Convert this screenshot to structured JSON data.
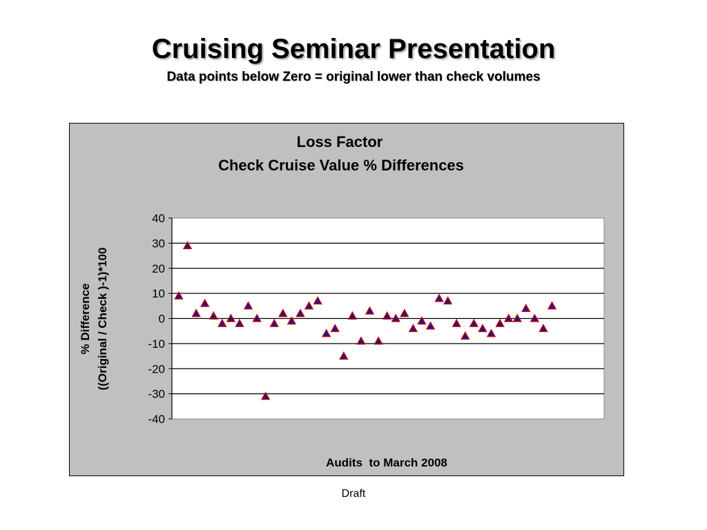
{
  "slide": {
    "title": "Cruising Seminar Presentation",
    "subtitle": "Data points below Zero = original lower than check volumes",
    "footer": "Draft"
  },
  "chart_data": {
    "type": "scatter",
    "title_line1": "Loss Factor",
    "title_line2": "Check Cruise Value % Differences",
    "xlabel": "Audits  to March 2008",
    "ylabel_line1": "% Difference",
    "ylabel_line2": "((Original / Check )-1)*100",
    "ylim": [
      -40,
      40
    ],
    "yticks": [
      40,
      30,
      20,
      10,
      0,
      -10,
      -20,
      -30,
      -40
    ],
    "grid": true,
    "legend": "none",
    "marker": "triangle",
    "marker_fill": "#1a1a8c",
    "marker_edge": "#cc0000",
    "x": [
      1,
      2,
      3,
      4,
      5,
      6,
      7,
      8,
      9,
      10,
      11,
      12,
      13,
      14,
      15,
      16,
      17,
      18,
      19,
      20,
      21,
      22,
      23,
      24,
      25,
      26,
      27,
      28,
      29,
      30,
      31,
      32,
      33,
      34,
      35,
      36,
      37,
      38,
      39,
      40,
      41,
      42,
      43,
      44
    ],
    "y": [
      9,
      29,
      2,
      6,
      1,
      -2,
      0,
      -2,
      5,
      0,
      -31,
      -2,
      2,
      -1,
      2,
      5,
      7,
      -6,
      -4,
      -15,
      1,
      -9,
      3,
      -9,
      1,
      0,
      2,
      -4,
      -1,
      -3,
      8,
      7,
      -2,
      -7,
      -2,
      -4,
      -6,
      -2,
      0,
      0,
      4,
      0,
      -4,
      5
    ]
  }
}
